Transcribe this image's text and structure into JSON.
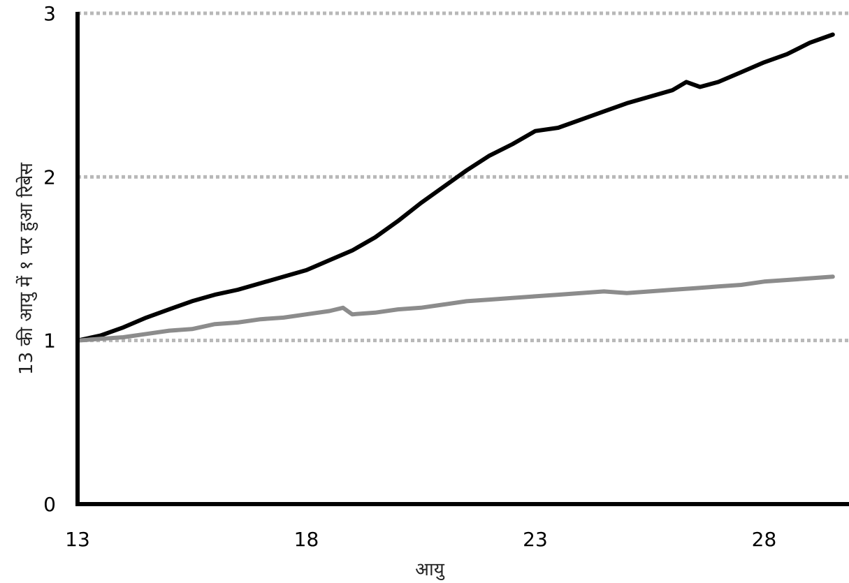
{
  "chart_data": {
    "type": "line",
    "title": "",
    "xlabel": "आयु",
    "ylabel": "13 की आयु में १ पर हुआ रिबेस",
    "xlim": [
      13,
      29.5
    ],
    "ylim": [
      0,
      3
    ],
    "x_ticks": [
      13,
      18,
      23,
      28
    ],
    "y_ticks": [
      0,
      1,
      2,
      3
    ],
    "gridlines_y": [
      1,
      2,
      3
    ],
    "grid": "horizontal dotted",
    "legend": "none",
    "colors": {
      "axis": "#000000",
      "grid": "#b8b8b8",
      "series_dark": "#000000",
      "series_light": "#8c8c8c"
    },
    "series": [
      {
        "color": "#000000",
        "points": [
          [
            13.0,
            1.0
          ],
          [
            13.5,
            1.03
          ],
          [
            14.0,
            1.08
          ],
          [
            14.5,
            1.14
          ],
          [
            15.0,
            1.19
          ],
          [
            15.5,
            1.24
          ],
          [
            16.0,
            1.28
          ],
          [
            16.5,
            1.31
          ],
          [
            17.0,
            1.35
          ],
          [
            17.5,
            1.39
          ],
          [
            18.0,
            1.43
          ],
          [
            18.5,
            1.49
          ],
          [
            19.0,
            1.55
          ],
          [
            19.5,
            1.63
          ],
          [
            20.0,
            1.73
          ],
          [
            20.5,
            1.84
          ],
          [
            21.0,
            1.94
          ],
          [
            21.5,
            2.04
          ],
          [
            22.0,
            2.13
          ],
          [
            22.5,
            2.2
          ],
          [
            23.0,
            2.28
          ],
          [
            23.5,
            2.3
          ],
          [
            24.0,
            2.35
          ],
          [
            24.5,
            2.4
          ],
          [
            25.0,
            2.45
          ],
          [
            25.5,
            2.49
          ],
          [
            26.0,
            2.53
          ],
          [
            26.3,
            2.58
          ],
          [
            26.6,
            2.55
          ],
          [
            27.0,
            2.58
          ],
          [
            27.5,
            2.64
          ],
          [
            28.0,
            2.7
          ],
          [
            28.5,
            2.75
          ],
          [
            29.0,
            2.82
          ],
          [
            29.5,
            2.87
          ]
        ]
      },
      {
        "color": "#8c8c8c",
        "points": [
          [
            13.0,
            1.0
          ],
          [
            13.5,
            1.01
          ],
          [
            14.0,
            1.02
          ],
          [
            14.5,
            1.04
          ],
          [
            15.0,
            1.06
          ],
          [
            15.5,
            1.07
          ],
          [
            16.0,
            1.1
          ],
          [
            16.5,
            1.11
          ],
          [
            17.0,
            1.13
          ],
          [
            17.5,
            1.14
          ],
          [
            18.0,
            1.16
          ],
          [
            18.5,
            1.18
          ],
          [
            18.8,
            1.2
          ],
          [
            19.0,
            1.16
          ],
          [
            19.5,
            1.17
          ],
          [
            20.0,
            1.19
          ],
          [
            20.5,
            1.2
          ],
          [
            21.0,
            1.22
          ],
          [
            21.5,
            1.24
          ],
          [
            22.0,
            1.25
          ],
          [
            22.5,
            1.26
          ],
          [
            23.0,
            1.27
          ],
          [
            23.5,
            1.28
          ],
          [
            24.0,
            1.29
          ],
          [
            24.5,
            1.3
          ],
          [
            25.0,
            1.29
          ],
          [
            25.5,
            1.3
          ],
          [
            26.0,
            1.31
          ],
          [
            26.5,
            1.32
          ],
          [
            27.0,
            1.33
          ],
          [
            27.5,
            1.34
          ],
          [
            28.0,
            1.36
          ],
          [
            28.5,
            1.37
          ],
          [
            29.0,
            1.38
          ],
          [
            29.5,
            1.39
          ]
        ]
      }
    ]
  }
}
